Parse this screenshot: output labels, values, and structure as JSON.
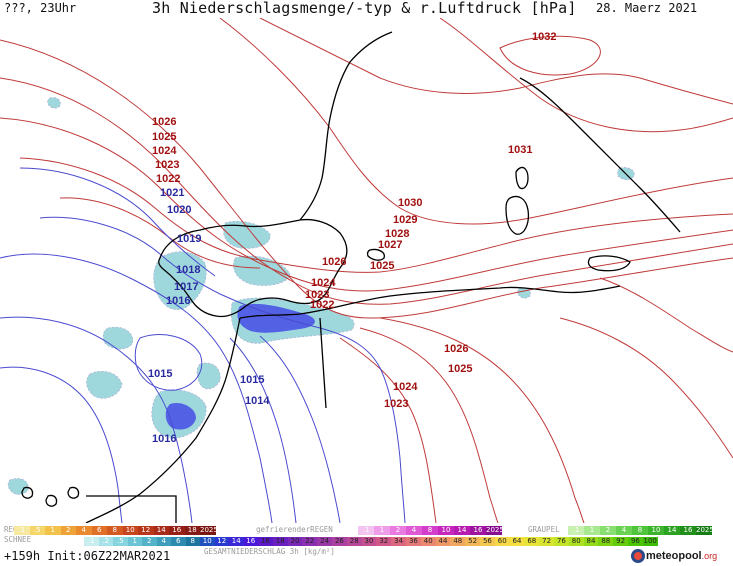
{
  "header": {
    "left": "???, 23Uhr",
    "title": "3h Niederschlagsmenge/-typ & r.Luftdruck [hPa]",
    "date": "28. Maerz 2021"
  },
  "colors": {
    "isobar_high": "#c03a3a",
    "isobar_low": "#4a4ad0",
    "label_high": "#a01010",
    "label_low": "#2a2aa0",
    "precip_light": "#9fd8dc",
    "precip_blue": "#3a3ae8",
    "coast": "#000000"
  },
  "pressure_labels": [
    {
      "text": "1032"
    },
    {
      "text": "1031"
    },
    {
      "text": "1030"
    },
    {
      "text": "1029"
    },
    {
      "text": "1028"
    },
    {
      "text": "1027"
    },
    {
      "text": "1026"
    },
    {
      "text": "1025"
    },
    {
      "text": "1024"
    },
    {
      "text": "1023"
    },
    {
      "text": "1022"
    },
    {
      "text": "1026"
    },
    {
      "text": "1025"
    },
    {
      "text": "1024"
    },
    {
      "text": "1023"
    },
    {
      "text": "1022"
    },
    {
      "text": "1021"
    },
    {
      "text": "1020"
    },
    {
      "text": "1019"
    },
    {
      "text": "1018"
    },
    {
      "text": "1017"
    },
    {
      "text": "1016"
    },
    {
      "text": "1015"
    },
    {
      "text": "1015"
    },
    {
      "text": "1014"
    },
    {
      "text": "1016"
    },
    {
      "text": "1026"
    },
    {
      "text": "1025"
    },
    {
      "text": "1024"
    },
    {
      "text": "1023"
    }
  ],
  "legend": {
    "regen_label": "REGEN",
    "schnee_label": "SCHNEE",
    "gefrierend_label": "gefrierenderREGEN",
    "graupel_label": "GRAUPEL",
    "gesamt_label": "GESAMTNIEDERSCHLAG 3h [kg/m²]",
    "rain_ticks": [
      ".1",
      ".5",
      "1",
      "2",
      "4",
      "6",
      "8",
      "10",
      "12",
      "14",
      "16",
      "18",
      "2025+"
    ],
    "freezing_ticks": [
      ".1",
      "1",
      "2",
      "4",
      "8",
      "10",
      "14",
      "16",
      "2025+"
    ],
    "graupel_ticks": [
      ".1",
      "1",
      "2",
      "4",
      "8",
      "10",
      "14",
      "16",
      "2025+"
    ],
    "snow_ticks": [
      ".1",
      ".2",
      ".5",
      "1",
      "2",
      "4",
      "6",
      "8",
      "10",
      "12",
      "14",
      "16"
    ],
    "total_ticks": [
      "16",
      "18",
      "20",
      "22",
      "24",
      "26",
      "28",
      "30",
      "32",
      "34",
      "36",
      "40",
      "44",
      "48",
      "52",
      "56",
      "60",
      "64",
      "68",
      "72",
      "76",
      "80",
      "84",
      "88",
      "92",
      "96",
      "100"
    ]
  },
  "footer": {
    "run_info": "+159h  Init:06Z22MAR2021",
    "logo_text": "meteopool",
    "logo_suffix": ".org"
  }
}
